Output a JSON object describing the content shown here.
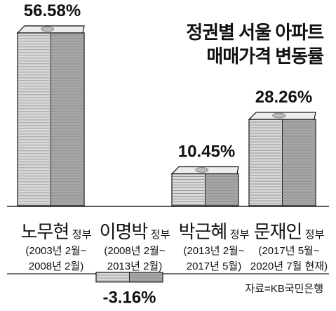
{
  "title_lines": [
    "정권별 서울 아파트",
    "매매가격 변동률"
  ],
  "source": "자료=KB국민은행",
  "colors": {
    "bar_face": "#d9d9d9",
    "bar_side": "#a6a6a6",
    "bar_stripe": "#8c8c8c",
    "ink": "#111111"
  },
  "chart_data": {
    "type": "bar",
    "title": "정권별 서울 아파트 매매가격 변동률",
    "categories": [
      "노무현",
      "이명박",
      "박근혜",
      "문재인"
    ],
    "category_suffix": "정부",
    "periods": [
      [
        "(2003년 2월~",
        "2008년 2월)"
      ],
      [
        "(2008년 2월~",
        "2013년 2월)"
      ],
      [
        "(2013년 2월~",
        "2017년 5월)"
      ],
      [
        "(2017년 5월~",
        "2020년 7월 현재)"
      ]
    ],
    "values": [
      56.58,
      -3.16,
      10.45,
      28.26
    ],
    "value_labels": [
      "56.58%",
      "-3.16%",
      "10.45%",
      "28.26%"
    ],
    "unit": "%",
    "ylim": [
      -5,
      60
    ],
    "grid": false,
    "legend": "none"
  }
}
